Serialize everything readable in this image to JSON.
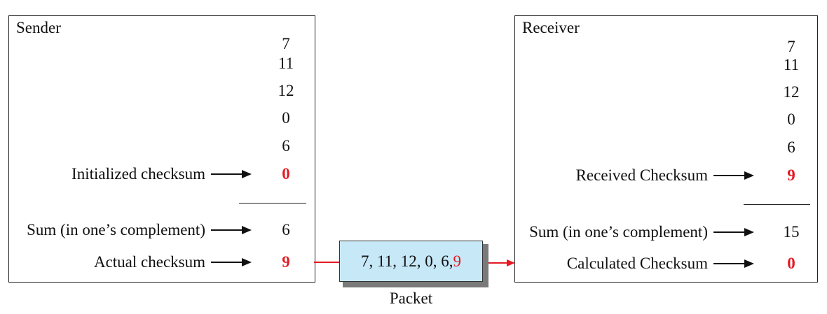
{
  "sender": {
    "title": "Sender",
    "values": [
      "7",
      "11",
      "12",
      "0",
      "6"
    ],
    "initialized_checksum_label": "Initialized checksum",
    "initialized_checksum_value": "0",
    "sum_label": "Sum (in one’s complement)",
    "sum_value": "6",
    "actual_checksum_label": "Actual checksum",
    "actual_checksum_value": "9"
  },
  "receiver": {
    "title": "Receiver",
    "values": [
      "7",
      "11",
      "12",
      "0",
      "6"
    ],
    "received_checksum_label": "Received Checksum",
    "received_checksum_value": "9",
    "sum_label": "Sum (in one’s complement)",
    "sum_value": "15",
    "calculated_checksum_label": "Calculated Checksum",
    "calculated_checksum_value": "0"
  },
  "packet": {
    "contents_prefix": "7, 11, 12, 0, 6, ",
    "contents_checksum": "9",
    "caption": "Packet"
  },
  "colors": {
    "highlight": "#e21b23",
    "packet_fill": "#c7e8f7",
    "packet_shadow": "#7a7a7a"
  }
}
